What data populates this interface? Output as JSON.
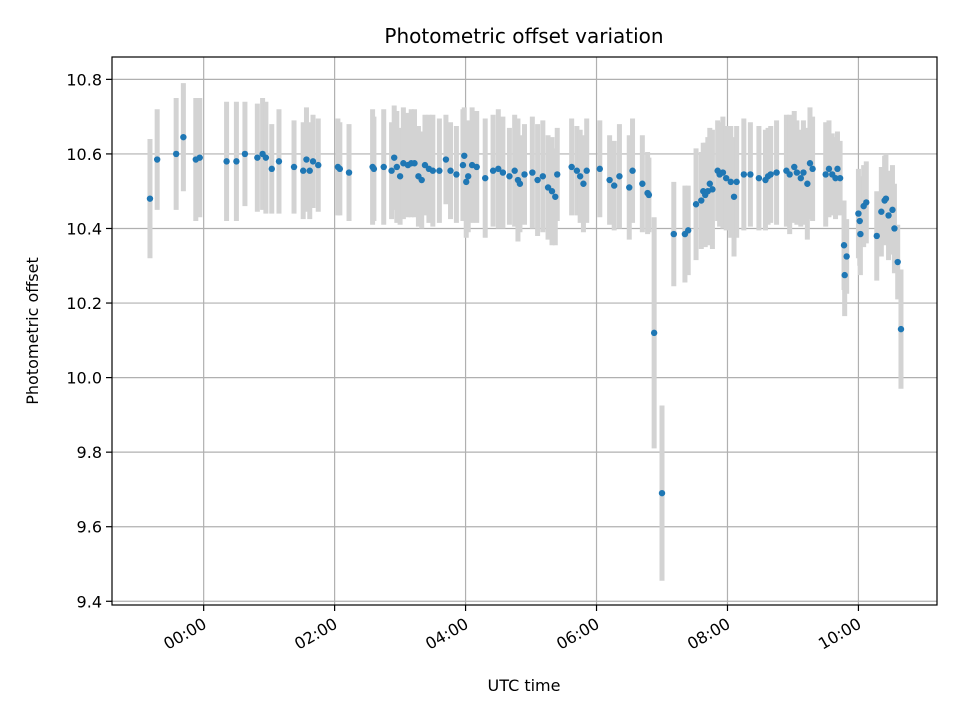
{
  "chart_data": {
    "type": "scatter",
    "title": "Photometric offset variation",
    "xlabel": "UTC time",
    "ylabel": "Photometric offset",
    "xlim_hours": [
      -1.4,
      11.2
    ],
    "ylim": [
      9.39,
      10.86
    ],
    "x_ticks": [
      {
        "hour": 0,
        "label": "00:00"
      },
      {
        "hour": 2,
        "label": "02:00"
      },
      {
        "hour": 4,
        "label": "04:00"
      },
      {
        "hour": 6,
        "label": "06:00"
      },
      {
        "hour": 8,
        "label": "08:00"
      },
      {
        "hour": 10,
        "label": "10:00"
      }
    ],
    "y_ticks": [
      {
        "value": 9.4,
        "label": "9.4"
      },
      {
        "value": 9.6,
        "label": "9.6"
      },
      {
        "value": 9.8,
        "label": "9.8"
      },
      {
        "value": 10.0,
        "label": "10.0"
      },
      {
        "value": 10.2,
        "label": "10.2"
      },
      {
        "value": 10.4,
        "label": "10.4"
      },
      {
        "value": 10.6,
        "label": "10.6"
      },
      {
        "value": 10.8,
        "label": "10.8"
      }
    ],
    "grid": true,
    "colors": {
      "point": "#1f77b4",
      "errorbar": "#d3d3d3",
      "grid": "#b0b0b0"
    },
    "series": [
      {
        "name": "offset",
        "points": [
          [
            -0.82,
            10.48,
            0.16
          ],
          [
            -0.71,
            10.585,
            0.135
          ],
          [
            -0.42,
            10.6,
            0.15
          ],
          [
            -0.31,
            10.645,
            0.145
          ],
          [
            -0.12,
            10.585,
            0.165
          ],
          [
            -0.06,
            10.59,
            0.16
          ],
          [
            0.35,
            10.58,
            0.16
          ],
          [
            0.5,
            10.58,
            0.16
          ],
          [
            0.63,
            10.6,
            0.14
          ],
          [
            0.82,
            10.59,
            0.145
          ],
          [
            0.9,
            10.6,
            0.15
          ],
          [
            0.95,
            10.59,
            0.15
          ],
          [
            1.04,
            10.56,
            0.12
          ],
          [
            1.15,
            10.58,
            0.14
          ],
          [
            1.38,
            10.565,
            0.125
          ],
          [
            1.52,
            10.555,
            0.13
          ],
          [
            1.57,
            10.585,
            0.14
          ],
          [
            1.62,
            10.555,
            0.13
          ],
          [
            1.67,
            10.58,
            0.125
          ],
          [
            1.75,
            10.57,
            0.125
          ],
          [
            2.05,
            10.565,
            0.13
          ],
          [
            2.08,
            10.56,
            0.125
          ],
          [
            2.22,
            10.55,
            0.13
          ],
          [
            2.58,
            10.565,
            0.155
          ],
          [
            2.6,
            10.56,
            0.14
          ],
          [
            2.75,
            10.565,
            0.155
          ],
          [
            2.87,
            10.555,
            0.13
          ],
          [
            2.91,
            10.59,
            0.14
          ],
          [
            2.95,
            10.565,
            0.15
          ],
          [
            3.0,
            10.54,
            0.13
          ],
          [
            3.05,
            10.575,
            0.15
          ],
          [
            3.12,
            10.57,
            0.14
          ],
          [
            3.17,
            10.575,
            0.145
          ],
          [
            3.22,
            10.575,
            0.145
          ],
          [
            3.28,
            10.54,
            0.135
          ],
          [
            3.33,
            10.53,
            0.13
          ],
          [
            3.38,
            10.57,
            0.135
          ],
          [
            3.44,
            10.56,
            0.145
          ],
          [
            3.5,
            10.555,
            0.15
          ],
          [
            3.6,
            10.555,
            0.14
          ],
          [
            3.7,
            10.585,
            0.12
          ],
          [
            3.77,
            10.555,
            0.13
          ],
          [
            3.86,
            10.545,
            0.13
          ],
          [
            3.96,
            10.57,
            0.15
          ],
          [
            3.98,
            10.595,
            0.13
          ],
          [
            4.01,
            10.525,
            0.15
          ],
          [
            4.04,
            10.54,
            0.15
          ],
          [
            4.1,
            10.57,
            0.155
          ],
          [
            4.17,
            10.565,
            0.15
          ],
          [
            4.3,
            10.535,
            0.16
          ],
          [
            4.42,
            10.555,
            0.15
          ],
          [
            4.5,
            10.56,
            0.16
          ],
          [
            4.57,
            10.55,
            0.15
          ],
          [
            4.67,
            10.54,
            0.13
          ],
          [
            4.75,
            10.555,
            0.15
          ],
          [
            4.8,
            10.53,
            0.165
          ],
          [
            4.83,
            10.52,
            0.13
          ],
          [
            4.9,
            10.545,
            0.135
          ],
          [
            5.02,
            10.55,
            0.15
          ],
          [
            5.1,
            10.53,
            0.15
          ],
          [
            5.18,
            10.54,
            0.15
          ],
          [
            5.26,
            10.51,
            0.14
          ],
          [
            5.32,
            10.5,
            0.145
          ],
          [
            5.37,
            10.485,
            0.13
          ],
          [
            5.4,
            10.545,
            0.125
          ],
          [
            5.62,
            10.565,
            0.13
          ],
          [
            5.7,
            10.555,
            0.12
          ],
          [
            5.75,
            10.54,
            0.125
          ],
          [
            5.8,
            10.52,
            0.13
          ],
          [
            5.85,
            10.555,
            0.14
          ],
          [
            6.05,
            10.56,
            0.13
          ],
          [
            6.2,
            10.53,
            0.12
          ],
          [
            6.27,
            10.515,
            0.12
          ],
          [
            6.35,
            10.54,
            0.14
          ],
          [
            6.5,
            10.51,
            0.14
          ],
          [
            6.55,
            10.555,
            0.14
          ],
          [
            6.7,
            10.52,
            0.13
          ],
          [
            6.78,
            10.495,
            0.11
          ],
          [
            6.8,
            10.49,
            0.1
          ],
          [
            6.88,
            10.12,
            0.31
          ],
          [
            7.0,
            9.69,
            0.235
          ],
          [
            7.18,
            10.385,
            0.14
          ],
          [
            7.35,
            10.385,
            0.13
          ],
          [
            7.4,
            10.395,
            0.12
          ],
          [
            7.52,
            10.465,
            0.15
          ],
          [
            7.6,
            10.475,
            0.13
          ],
          [
            7.63,
            10.5,
            0.13
          ],
          [
            7.66,
            10.49,
            0.14
          ],
          [
            7.7,
            10.5,
            0.145
          ],
          [
            7.73,
            10.52,
            0.15
          ],
          [
            7.77,
            10.505,
            0.16
          ],
          [
            7.85,
            10.555,
            0.135
          ],
          [
            7.88,
            10.545,
            0.14
          ],
          [
            7.93,
            10.55,
            0.15
          ],
          [
            7.98,
            10.535,
            0.14
          ],
          [
            8.05,
            10.525,
            0.15
          ],
          [
            8.1,
            10.485,
            0.16
          ],
          [
            8.14,
            10.525,
            0.15
          ],
          [
            8.25,
            10.545,
            0.15
          ],
          [
            8.35,
            10.545,
            0.14
          ],
          [
            8.48,
            10.535,
            0.14
          ],
          [
            8.58,
            10.53,
            0.135
          ],
          [
            8.62,
            10.54,
            0.13
          ],
          [
            8.66,
            10.545,
            0.13
          ],
          [
            8.75,
            10.55,
            0.14
          ],
          [
            8.9,
            10.555,
            0.15
          ],
          [
            8.95,
            10.545,
            0.16
          ],
          [
            9.02,
            10.565,
            0.15
          ],
          [
            9.06,
            10.55,
            0.14
          ],
          [
            9.12,
            10.535,
            0.13
          ],
          [
            9.16,
            10.55,
            0.14
          ],
          [
            9.22,
            10.52,
            0.15
          ],
          [
            9.26,
            10.575,
            0.15
          ],
          [
            9.3,
            10.56,
            0.14
          ],
          [
            9.5,
            10.545,
            0.14
          ],
          [
            9.55,
            10.56,
            0.13
          ],
          [
            9.6,
            10.545,
            0.11
          ],
          [
            9.65,
            10.535,
            0.11
          ],
          [
            9.68,
            10.56,
            0.1
          ],
          [
            9.72,
            10.535,
            0.1
          ],
          [
            9.78,
            10.355,
            0.12
          ],
          [
            9.79,
            10.275,
            0.11
          ],
          [
            9.82,
            10.325,
            0.1
          ],
          [
            10.0,
            10.44,
            0.12
          ],
          [
            10.02,
            10.42,
            0.12
          ],
          [
            10.03,
            10.385,
            0.11
          ],
          [
            10.08,
            10.46,
            0.11
          ],
          [
            10.12,
            10.47,
            0.11
          ],
          [
            10.28,
            10.38,
            0.12
          ],
          [
            10.35,
            10.445,
            0.12
          ],
          [
            10.4,
            10.475,
            0.12
          ],
          [
            10.42,
            10.48,
            0.12
          ],
          [
            10.46,
            10.435,
            0.12
          ],
          [
            10.52,
            10.45,
            0.12
          ],
          [
            10.55,
            10.4,
            0.12
          ],
          [
            10.6,
            10.31,
            0.1
          ],
          [
            10.65,
            10.13,
            0.16
          ]
        ]
      }
    ]
  }
}
